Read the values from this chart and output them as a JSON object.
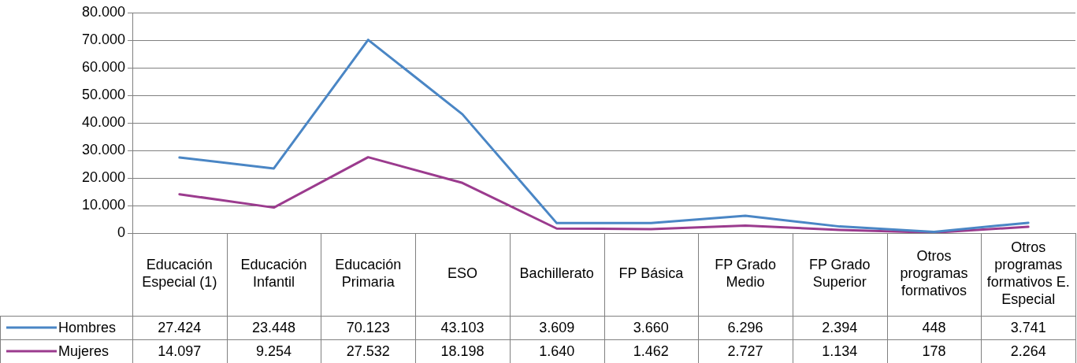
{
  "chart_data": {
    "type": "line",
    "categories": [
      "Educación Especial (1)",
      "Educación Infantil",
      "Educación Primaria",
      "ESO",
      "Bachillerato",
      "FP Básica",
      "FP Grado Medio",
      "FP Grado Superior",
      "Otros programas formativos",
      "Otros programas formativos E. Especial"
    ],
    "series": [
      {
        "name": "Hombres",
        "color": "#4a86c5",
        "values": [
          27424,
          23448,
          70123,
          43103,
          3609,
          3660,
          6296,
          2394,
          448,
          3741
        ],
        "value_labels": [
          "27.424",
          "23.448",
          "70.123",
          "43.103",
          "3.609",
          "3.660",
          "6.296",
          "2.394",
          "448",
          "3.741"
        ]
      },
      {
        "name": "Mujeres",
        "color": "#9b3b8e",
        "values": [
          14097,
          9254,
          27532,
          18198,
          1640,
          1462,
          2727,
          1134,
          178,
          2264
        ],
        "value_labels": [
          "14.097",
          "9.254",
          "27.532",
          "18.198",
          "1.640",
          "1.462",
          "2.727",
          "1.134",
          "178",
          "2.264"
        ]
      }
    ],
    "ylim": [
      0,
      80000
    ],
    "yticks": [
      {
        "value": 0,
        "label": "0"
      },
      {
        "value": 10000,
        "label": "10.000"
      },
      {
        "value": 20000,
        "label": "20.000"
      },
      {
        "value": 30000,
        "label": "30.000"
      },
      {
        "value": 40000,
        "label": "40.000"
      },
      {
        "value": 50000,
        "label": "50.000"
      },
      {
        "value": 60000,
        "label": "60.000"
      },
      {
        "value": 70000,
        "label": "70.000"
      },
      {
        "value": 80000,
        "label": "80.000"
      }
    ],
    "grid": "y",
    "legend": "bottom",
    "marker": "none",
    "line_style": "solid"
  }
}
